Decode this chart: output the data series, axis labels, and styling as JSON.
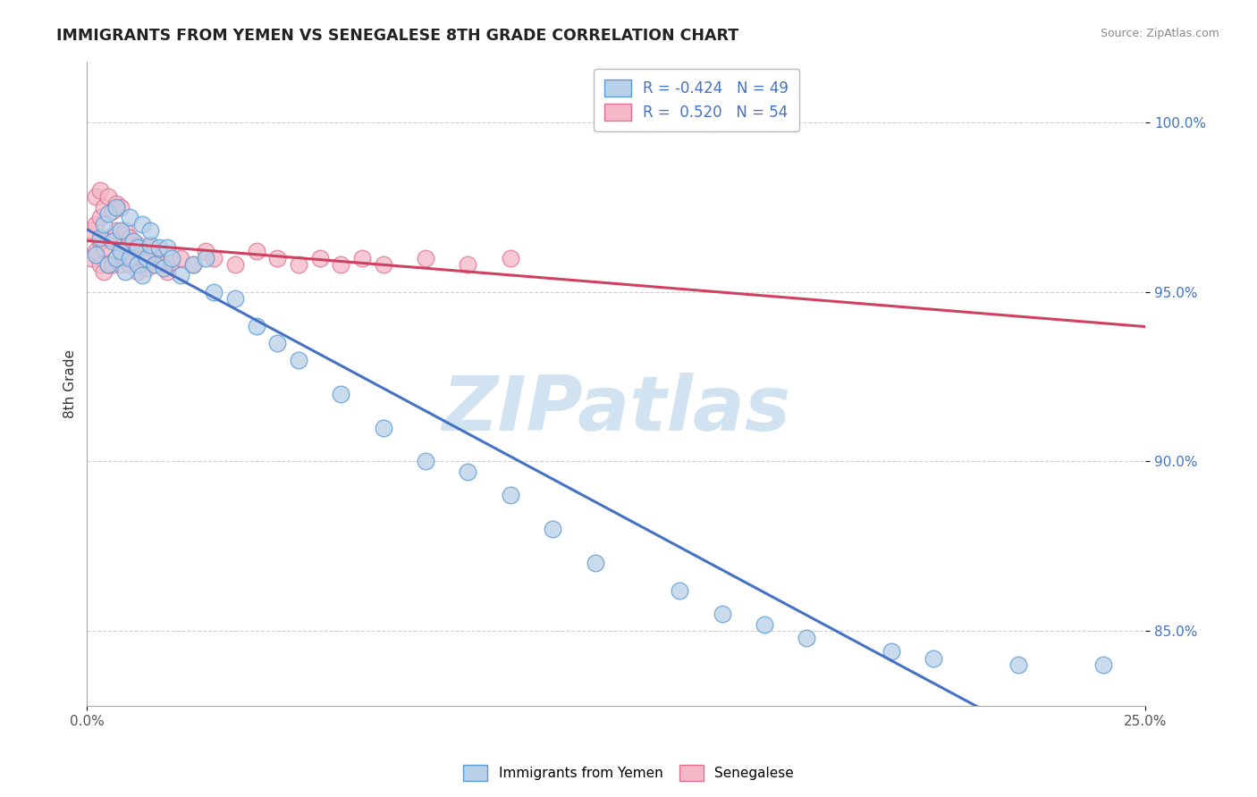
{
  "title": "IMMIGRANTS FROM YEMEN VS SENEGALESE 8TH GRADE CORRELATION CHART",
  "source": "Source: ZipAtlas.com",
  "ylabel": "8th Grade",
  "yaxis_labels": [
    "85.0%",
    "90.0%",
    "95.0%",
    "100.0%"
  ],
  "yaxis_values": [
    0.85,
    0.9,
    0.95,
    1.0
  ],
  "xlim": [
    0.0,
    0.25
  ],
  "ylim": [
    0.828,
    1.018
  ],
  "series1_name": "Immigrants from Yemen",
  "series1_color": "#b8d0e8",
  "series1_edge_color": "#5b9bd5",
  "series2_name": "Senegalese",
  "series2_color": "#f4b8c8",
  "series2_edge_color": "#e07090",
  "blue_line_color": "#4472c4",
  "pink_line_color": "#d04060",
  "watermark": "ZIPatlas",
  "watermark_color": "#cce0f0",
  "background_color": "#ffffff",
  "grid_color": "#bbbbbb",
  "legend_R1": "-0.424",
  "legend_N1": "49",
  "legend_R2": "0.520",
  "legend_N2": "54",
  "blue_dots_x": [
    0.002,
    0.003,
    0.004,
    0.005,
    0.005,
    0.006,
    0.007,
    0.007,
    0.008,
    0.008,
    0.009,
    0.01,
    0.01,
    0.011,
    0.012,
    0.012,
    0.013,
    0.013,
    0.014,
    0.015,
    0.015,
    0.016,
    0.017,
    0.018,
    0.019,
    0.02,
    0.022,
    0.025,
    0.028,
    0.03,
    0.035,
    0.04,
    0.045,
    0.05,
    0.06,
    0.07,
    0.08,
    0.09,
    0.1,
    0.11,
    0.12,
    0.14,
    0.15,
    0.16,
    0.17,
    0.19,
    0.2,
    0.22,
    0.24
  ],
  "blue_dots_y": [
    0.961,
    0.966,
    0.97,
    0.958,
    0.973,
    0.965,
    0.96,
    0.975,
    0.962,
    0.968,
    0.956,
    0.972,
    0.96,
    0.965,
    0.958,
    0.963,
    0.97,
    0.955,
    0.96,
    0.964,
    0.968,
    0.958,
    0.963,
    0.957,
    0.963,
    0.96,
    0.955,
    0.958,
    0.96,
    0.95,
    0.948,
    0.94,
    0.935,
    0.93,
    0.92,
    0.91,
    0.9,
    0.897,
    0.89,
    0.88,
    0.87,
    0.862,
    0.855,
    0.852,
    0.848,
    0.844,
    0.842,
    0.84,
    0.84
  ],
  "pink_dots_x": [
    0.001,
    0.001,
    0.002,
    0.002,
    0.002,
    0.003,
    0.003,
    0.003,
    0.003,
    0.004,
    0.004,
    0.004,
    0.005,
    0.005,
    0.005,
    0.006,
    0.006,
    0.006,
    0.007,
    0.007,
    0.007,
    0.008,
    0.008,
    0.008,
    0.009,
    0.009,
    0.01,
    0.01,
    0.011,
    0.012,
    0.012,
    0.013,
    0.014,
    0.015,
    0.016,
    0.017,
    0.018,
    0.019,
    0.02,
    0.022,
    0.025,
    0.028,
    0.03,
    0.035,
    0.04,
    0.045,
    0.05,
    0.055,
    0.06,
    0.065,
    0.07,
    0.08,
    0.09,
    0.1
  ],
  "pink_dots_y": [
    0.96,
    0.968,
    0.962,
    0.97,
    0.978,
    0.958,
    0.965,
    0.972,
    0.98,
    0.956,
    0.963,
    0.975,
    0.958,
    0.966,
    0.978,
    0.958,
    0.966,
    0.974,
    0.96,
    0.968,
    0.976,
    0.958,
    0.963,
    0.975,
    0.96,
    0.968,
    0.958,
    0.966,
    0.96,
    0.956,
    0.964,
    0.96,
    0.957,
    0.963,
    0.958,
    0.96,
    0.958,
    0.956,
    0.959,
    0.96,
    0.958,
    0.962,
    0.96,
    0.958,
    0.962,
    0.96,
    0.958,
    0.96,
    0.958,
    0.96,
    0.958,
    0.96,
    0.958,
    0.96
  ]
}
